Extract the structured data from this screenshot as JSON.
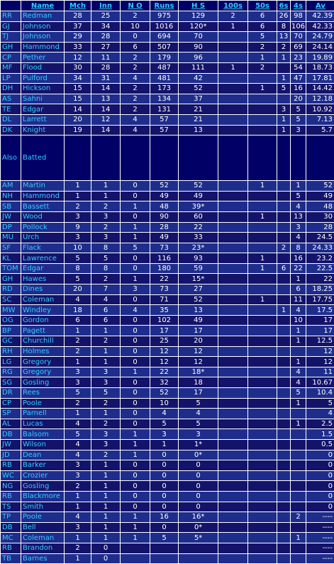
{
  "headers": [
    "",
    "Name",
    "Mch",
    "Inn",
    "N O",
    "Runs",
    "H S",
    "100s",
    "50s",
    "6s",
    "4s",
    "Av"
  ],
  "main_rows": [
    [
      "RR",
      "Redman",
      "28",
      "25",
      "2",
      "975",
      "129",
      "2",
      "6",
      "26",
      "98",
      "42.39"
    ],
    [
      "GJ",
      "Johnson",
      "37",
      "34",
      "10",
      "1016",
      "120*",
      "1",
      "6",
      "8",
      "106",
      "42.33"
    ],
    [
      "TJ",
      "Johnson",
      "29",
      "28",
      "0",
      "694",
      "70",
      "",
      "5",
      "13",
      "70",
      "24.79"
    ],
    [
      "GH",
      "Hammond",
      "33",
      "27",
      "6",
      "507",
      "90",
      "",
      "2",
      "2",
      "69",
      "24.14"
    ],
    [
      "CP",
      "Pether",
      "12",
      "11",
      "2",
      "179",
      "96",
      "",
      "1",
      "1",
      "23",
      "19.89"
    ],
    [
      "MF",
      "Flood",
      "30",
      "28",
      "2",
      "487",
      "111",
      "1",
      "2",
      "",
      "54",
      "18.73"
    ],
    [
      "LP",
      "Pulford",
      "34",
      "31",
      "4",
      "481",
      "42",
      "",
      "",
      "1",
      "47",
      "17.81"
    ],
    [
      "DH",
      "Hickson",
      "15",
      "14",
      "2",
      "173",
      "52",
      "",
      "1",
      "5",
      "16",
      "14.42"
    ],
    [
      "AS",
      "Sahni",
      "15",
      "13",
      "2",
      "134",
      "37",
      "",
      "",
      "",
      "20",
      "12.18"
    ],
    [
      "TE",
      "Edgar",
      "14",
      "14",
      "2",
      "131",
      "21",
      "",
      "",
      "3",
      "5",
      "10.92"
    ],
    [
      "DL",
      "Larrett",
      "20",
      "12",
      "4",
      "57",
      "21",
      "",
      "",
      "1",
      "5",
      "7.13"
    ],
    [
      "DK",
      "Knight",
      "19",
      "14",
      "4",
      "57",
      "13",
      "",
      "",
      "1",
      "3",
      "5.7"
    ]
  ],
  "spacer": {
    "left": "Also",
    "right": "Batted"
  },
  "also_rows": [
    [
      "AM",
      "Martin",
      "1",
      "1",
      "0",
      "52",
      "52",
      "",
      "1",
      "",
      "1",
      "52"
    ],
    [
      "NH",
      "Hammond",
      "1",
      "1",
      "0",
      "49",
      "49",
      "",
      "",
      "",
      "5",
      "49"
    ],
    [
      "SB",
      "Bassett",
      "2",
      "2",
      "1",
      "48",
      "39*",
      "",
      "",
      "",
      "4",
      "48"
    ],
    [
      "JW",
      "Wood",
      "3",
      "3",
      "0",
      "90",
      "60",
      "",
      "1",
      "",
      "13",
      "30"
    ],
    [
      "DP",
      "Pollock",
      "9",
      "2",
      "1",
      "28",
      "22",
      "",
      "",
      "",
      "3",
      "28"
    ],
    [
      "MU",
      "Urch",
      "3",
      "3",
      "1",
      "49",
      "33",
      "",
      "",
      "",
      "4",
      "24.5"
    ],
    [
      "SF",
      "Flack",
      "10",
      "8",
      "5",
      "73",
      "23*",
      "",
      "",
      "2",
      "8",
      "24.33"
    ],
    [
      "KL",
      "Lawrence",
      "5",
      "5",
      "0",
      "116",
      "93",
      "",
      "1",
      "",
      "16",
      "23.2"
    ],
    [
      "TOM",
      "Edgar",
      "8",
      "8",
      "0",
      "180",
      "59",
      "",
      "1",
      "6",
      "22",
      "22.5"
    ],
    [
      "GH",
      "Hawes",
      "5",
      "2",
      "1",
      "22",
      "15*",
      "",
      "",
      "",
      "1",
      "22"
    ],
    [
      "RD",
      "Dines",
      "20",
      "7",
      "3",
      "73",
      "27",
      "",
      "",
      "",
      "6",
      "18.25"
    ],
    [
      "SC",
      "Coleman",
      "4",
      "4",
      "0",
      "71",
      "52",
      "",
      "1",
      "",
      "11",
      "17.75"
    ],
    [
      "MW",
      "Windley",
      "18",
      "6",
      "4",
      "35",
      "13",
      "",
      "",
      "1",
      "4",
      "17.5"
    ],
    [
      "OG",
      "Gordon",
      "6",
      "6",
      "0",
      "102",
      "49",
      "",
      "",
      "",
      "10",
      "17"
    ],
    [
      "BP",
      "Pagett",
      "1",
      "1",
      "0",
      "17",
      "17",
      "",
      "",
      "",
      "1",
      "17"
    ],
    [
      "GC",
      "Churchill",
      "2",
      "2",
      "0",
      "25",
      "20",
      "",
      "",
      "",
      "1",
      "12.5"
    ],
    [
      "RH",
      "Holmes",
      "2",
      "1",
      "0",
      "12",
      "12",
      "",
      "",
      "",
      "",
      "12"
    ],
    [
      "LG",
      "Gregory",
      "1",
      "1",
      "0",
      "12",
      "12",
      "",
      "",
      "",
      "1",
      "12"
    ],
    [
      "RG",
      "Gregory",
      "3",
      "3",
      "1",
      "22",
      "18*",
      "",
      "",
      "",
      "4",
      "11"
    ],
    [
      "SG",
      "Gosling",
      "3",
      "3",
      "0",
      "32",
      "18",
      "",
      "",
      "",
      "4",
      "10.67"
    ],
    [
      "DR",
      "Rees",
      "5",
      "5",
      "0",
      "52",
      "17",
      "",
      "",
      "",
      "5",
      "10.4"
    ],
    [
      "CP",
      "Poole",
      "2",
      "2",
      "0",
      "10",
      "5",
      "",
      "",
      "",
      "1",
      "5"
    ],
    [
      "SP",
      "Parnell",
      "1",
      "1",
      "0",
      "4",
      "4",
      "",
      "",
      "",
      "",
      "4"
    ],
    [
      "AL",
      "Lucas",
      "4",
      "2",
      "0",
      "5",
      "5",
      "",
      "",
      "",
      "1",
      "2.5"
    ],
    [
      "DB",
      "Balsom",
      "5",
      "3",
      "1",
      "3",
      "3",
      "",
      "",
      "",
      "",
      "1.5"
    ],
    [
      "JW",
      "Wilson",
      "4",
      "3",
      "1",
      "1",
      "1*",
      "",
      "",
      "",
      "",
      "0.5"
    ],
    [
      "JD",
      "Dean",
      "4",
      "2",
      "1",
      "0",
      "0*",
      "",
      "",
      "",
      "",
      "0"
    ],
    [
      "RB",
      "Barker",
      "3",
      "1",
      "0",
      "0",
      "0",
      "",
      "",
      "",
      "",
      "0"
    ],
    [
      "WC",
      "Crozier",
      "3",
      "1",
      "0",
      "0",
      "0",
      "",
      "",
      "",
      "",
      "0"
    ],
    [
      "NG",
      "Gosling",
      "2",
      "1",
      "0",
      "0",
      "0",
      "",
      "",
      "",
      "",
      "0"
    ],
    [
      "RB",
      "Blackmore",
      "1",
      "1",
      "0",
      "0",
      "0",
      "",
      "",
      "",
      "",
      "0"
    ],
    [
      "TS",
      "Smith",
      "1",
      "1",
      "0",
      "0",
      "0",
      "",
      "",
      "",
      "",
      "0"
    ],
    [
      "TP",
      "Poole",
      "4",
      "1",
      "1",
      "16",
      "16*",
      "",
      "",
      "",
      "2",
      "----"
    ],
    [
      "DB",
      "Bell",
      "3",
      "1",
      "1",
      "0",
      "0*",
      "",
      "",
      "",
      "",
      "----"
    ],
    [
      "MC",
      "Coleman",
      "1",
      "1",
      "1",
      "5",
      "5*",
      "",
      "",
      "",
      "1",
      "----"
    ],
    [
      "RB",
      "Brandon",
      "2",
      "0",
      "",
      "",
      "",
      "",
      "",
      "",
      "",
      "----"
    ],
    [
      "TB",
      "Barnes",
      "1",
      "0",
      "",
      "",
      "",
      "",
      "",
      "",
      "",
      "----"
    ]
  ],
  "colors": {
    "row_a": "#1e2d8c",
    "row_b": "#13136a",
    "accent": "#33ccff",
    "text": "#ffffff"
  }
}
